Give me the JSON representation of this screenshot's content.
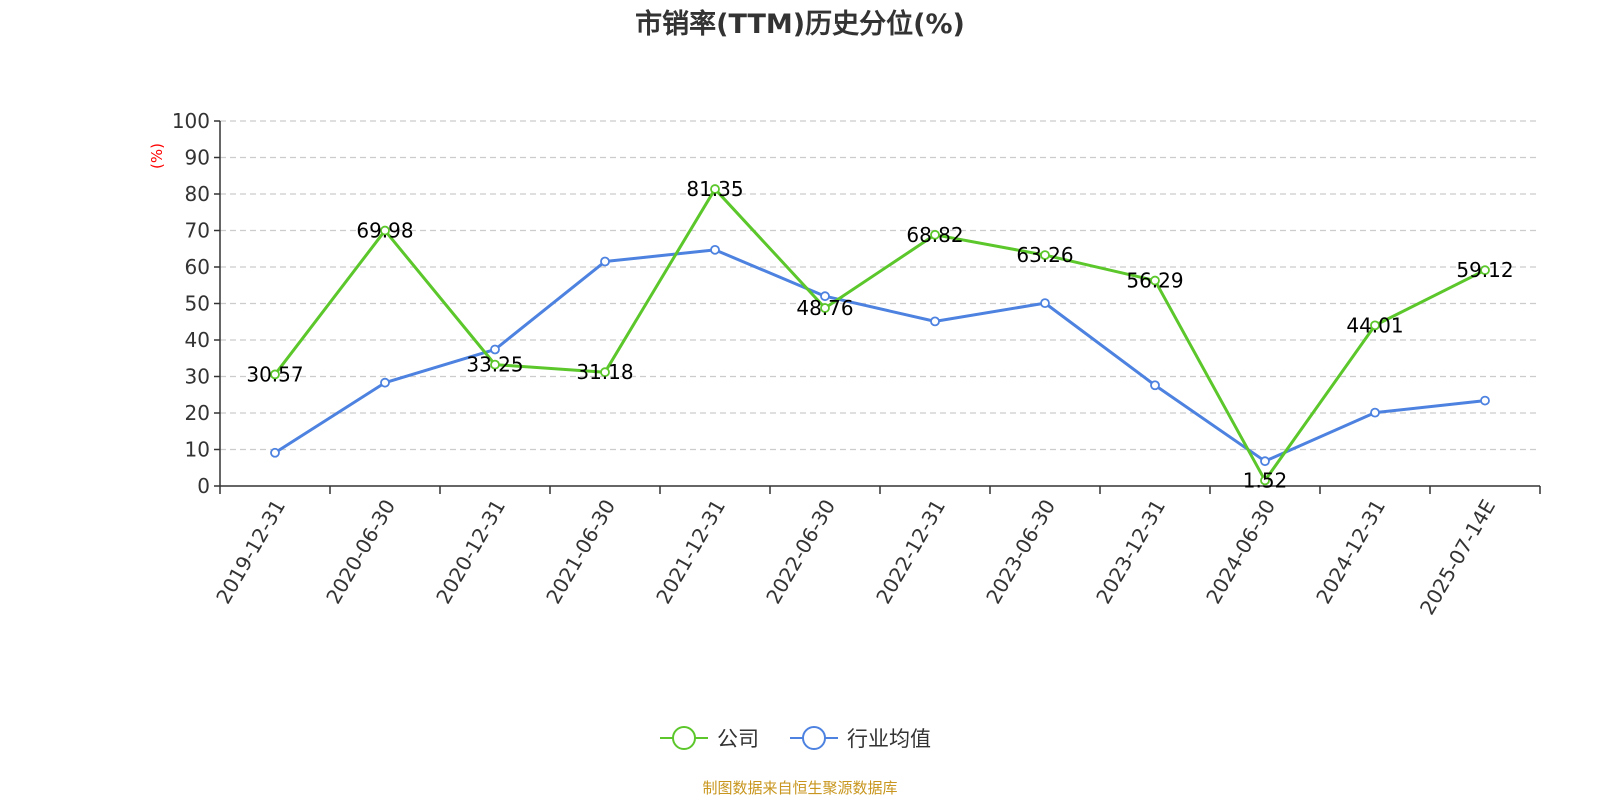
{
  "chart_data": {
    "type": "line",
    "title": "市销率(TTM)历史分位(%)",
    "ylabel": "(%)",
    "xlabel": "",
    "ylim": [
      0,
      100
    ],
    "yticks": [
      "0",
      "10",
      "20",
      "30",
      "40",
      "50",
      "60",
      "70",
      "80",
      "90",
      "100"
    ],
    "categories": [
      "2019-12-31",
      "2020-06-30",
      "2020-12-31",
      "2021-06-30",
      "2021-12-31",
      "2022-06-30",
      "2022-12-31",
      "2023-06-30",
      "2023-12-31",
      "2024-06-30",
      "2024-12-31",
      "2025-07-14E"
    ],
    "grid": "horizontal-dashed",
    "legend_position": "bottom-center",
    "series": [
      {
        "name": "公司",
        "color": "#5bc72b",
        "values": [
          30.57,
          69.98,
          33.25,
          31.18,
          81.35,
          48.76,
          68.82,
          63.26,
          56.29,
          1.52,
          44.01,
          59.12
        ],
        "labels": [
          "30.57",
          "69.98",
          "33.25",
          "31.18",
          "81.35",
          "48.76",
          "68.82",
          "63.26",
          "56.29",
          "1.52",
          "44.01",
          "59.12"
        ]
      },
      {
        "name": "行业均值",
        "color": "#4d82e0",
        "values": [
          9.1,
          28.3,
          37.4,
          61.5,
          64.7,
          52.0,
          45.1,
          50.1,
          27.6,
          6.8,
          20.1,
          23.4
        ]
      }
    ],
    "source": "制图数据来自恒生聚源数据库"
  }
}
